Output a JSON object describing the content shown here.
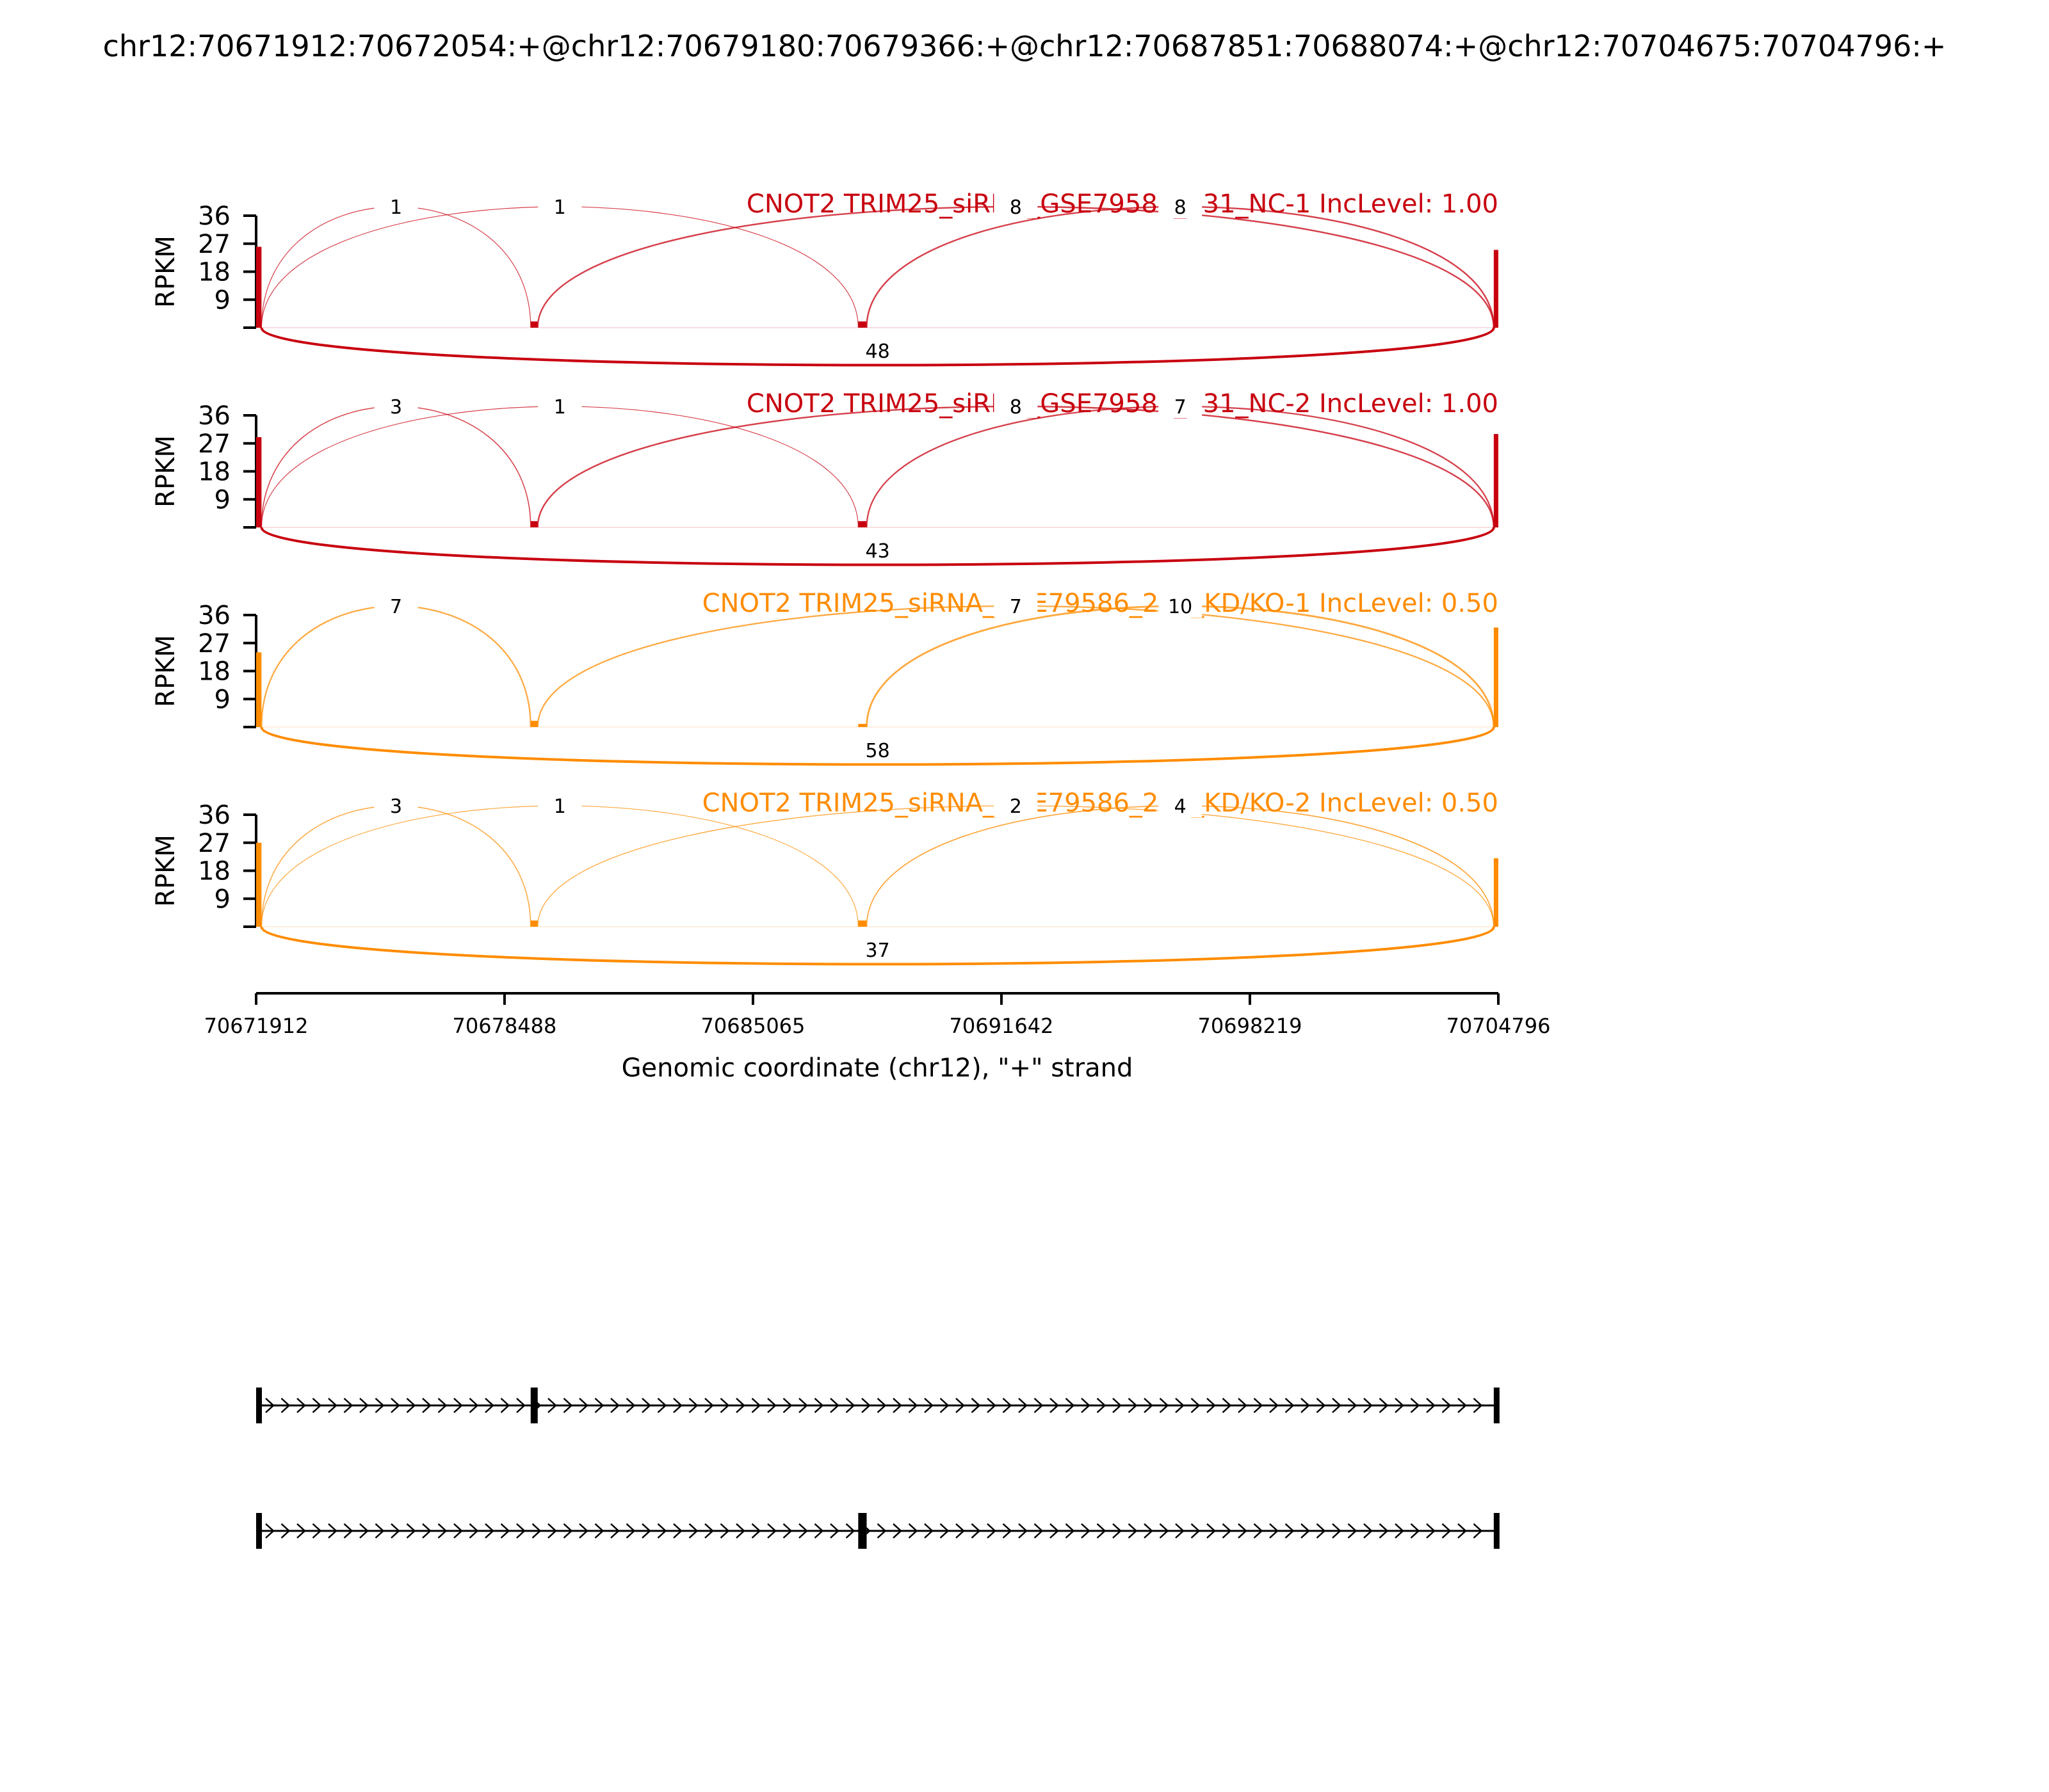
{
  "figure_title": "chr12:70671912:70672054:+@chr12:70679180:70679366:+@chr12:70687851:70688074:+@chr12:70704675:70704796:+",
  "chart_data": {
    "type": "sashimi",
    "ylabel": "RPKM",
    "xlabel": "Genomic coordinate (chr12), \"+\" strand",
    "xlim": [
      70671912,
      70704796
    ],
    "ylim": [
      0,
      36
    ],
    "yticks": [
      "36",
      "27",
      "18",
      "9"
    ],
    "xticks": [
      "70671912",
      "70678488",
      "70685065",
      "70691642",
      "70698219",
      "70704796"
    ],
    "exons": [
      {
        "start": 70671912,
        "end": 70672054
      },
      {
        "start": 70679180,
        "end": 70679366
      },
      {
        "start": 70687851,
        "end": 70688074
      },
      {
        "start": 70704675,
        "end": 70704796
      }
    ],
    "samples": [
      {
        "title": "CNOT2 TRIM25_siRNA_GSE79586_231_NC-1 IncLevel: 1.00",
        "color": "#c8000f",
        "exon_levels": [
          26,
          2,
          2,
          25
        ],
        "junctions": [
          {
            "from": 70672054,
            "to": 70679180,
            "count": "1",
            "side": "top"
          },
          {
            "from": 70672054,
            "to": 70687851,
            "count": "1",
            "side": "top"
          },
          {
            "from": 70679366,
            "to": 70704675,
            "count": "8",
            "side": "top"
          },
          {
            "from": 70688074,
            "to": 70704675,
            "count": "8",
            "side": "top"
          },
          {
            "from": 70672054,
            "to": 70704675,
            "count": "48",
            "side": "bottom"
          }
        ]
      },
      {
        "title": "CNOT2 TRIM25_siRNA_GSE79586_231_NC-2 IncLevel: 1.00",
        "color": "#c8000f",
        "exon_levels": [
          29,
          2,
          2,
          30
        ],
        "junctions": [
          {
            "from": 70672054,
            "to": 70679180,
            "count": "3",
            "side": "top"
          },
          {
            "from": 70672054,
            "to": 70687851,
            "count": "1",
            "side": "top"
          },
          {
            "from": 70679366,
            "to": 70704675,
            "count": "8",
            "side": "top"
          },
          {
            "from": 70688074,
            "to": 70704675,
            "count": "7",
            "side": "top"
          },
          {
            "from": 70672054,
            "to": 70704675,
            "count": "43",
            "side": "bottom"
          }
        ]
      },
      {
        "title": "CNOT2 TRIM25_siRNA_GSE79586_231_KD/KO-1 IncLevel: 0.50",
        "color": "#ff8c00",
        "exon_levels": [
          24,
          2,
          1,
          32
        ],
        "junctions": [
          {
            "from": 70672054,
            "to": 70679180,
            "count": "7",
            "side": "top"
          },
          {
            "from": 70679366,
            "to": 70704675,
            "count": "7",
            "side": "top"
          },
          {
            "from": 70688074,
            "to": 70704675,
            "count": "10",
            "side": "top"
          },
          {
            "from": 70672054,
            "to": 70704675,
            "count": "58",
            "side": "bottom"
          }
        ]
      },
      {
        "title": "CNOT2 TRIM25_siRNA_GSE79586_231_KD/KO-2 IncLevel: 0.50",
        "color": "#ff8c00",
        "exon_levels": [
          27,
          2,
          2,
          22
        ],
        "junctions": [
          {
            "from": 70672054,
            "to": 70679180,
            "count": "3",
            "side": "top"
          },
          {
            "from": 70672054,
            "to": 70687851,
            "count": "1",
            "side": "top"
          },
          {
            "from": 70679366,
            "to": 70704675,
            "count": "2",
            "side": "top"
          },
          {
            "from": 70688074,
            "to": 70704675,
            "count": "4",
            "side": "top"
          },
          {
            "from": 70672054,
            "to": 70704675,
            "count": "37",
            "side": "bottom"
          }
        ]
      }
    ],
    "isoforms": [
      {
        "exons": [
          [
            70671912,
            70672054
          ],
          [
            70679180,
            70679366
          ],
          [
            70704675,
            70704796
          ]
        ]
      },
      {
        "exons": [
          [
            70671912,
            70672054
          ],
          [
            70687851,
            70688074
          ],
          [
            70704675,
            70704796
          ]
        ]
      }
    ]
  }
}
